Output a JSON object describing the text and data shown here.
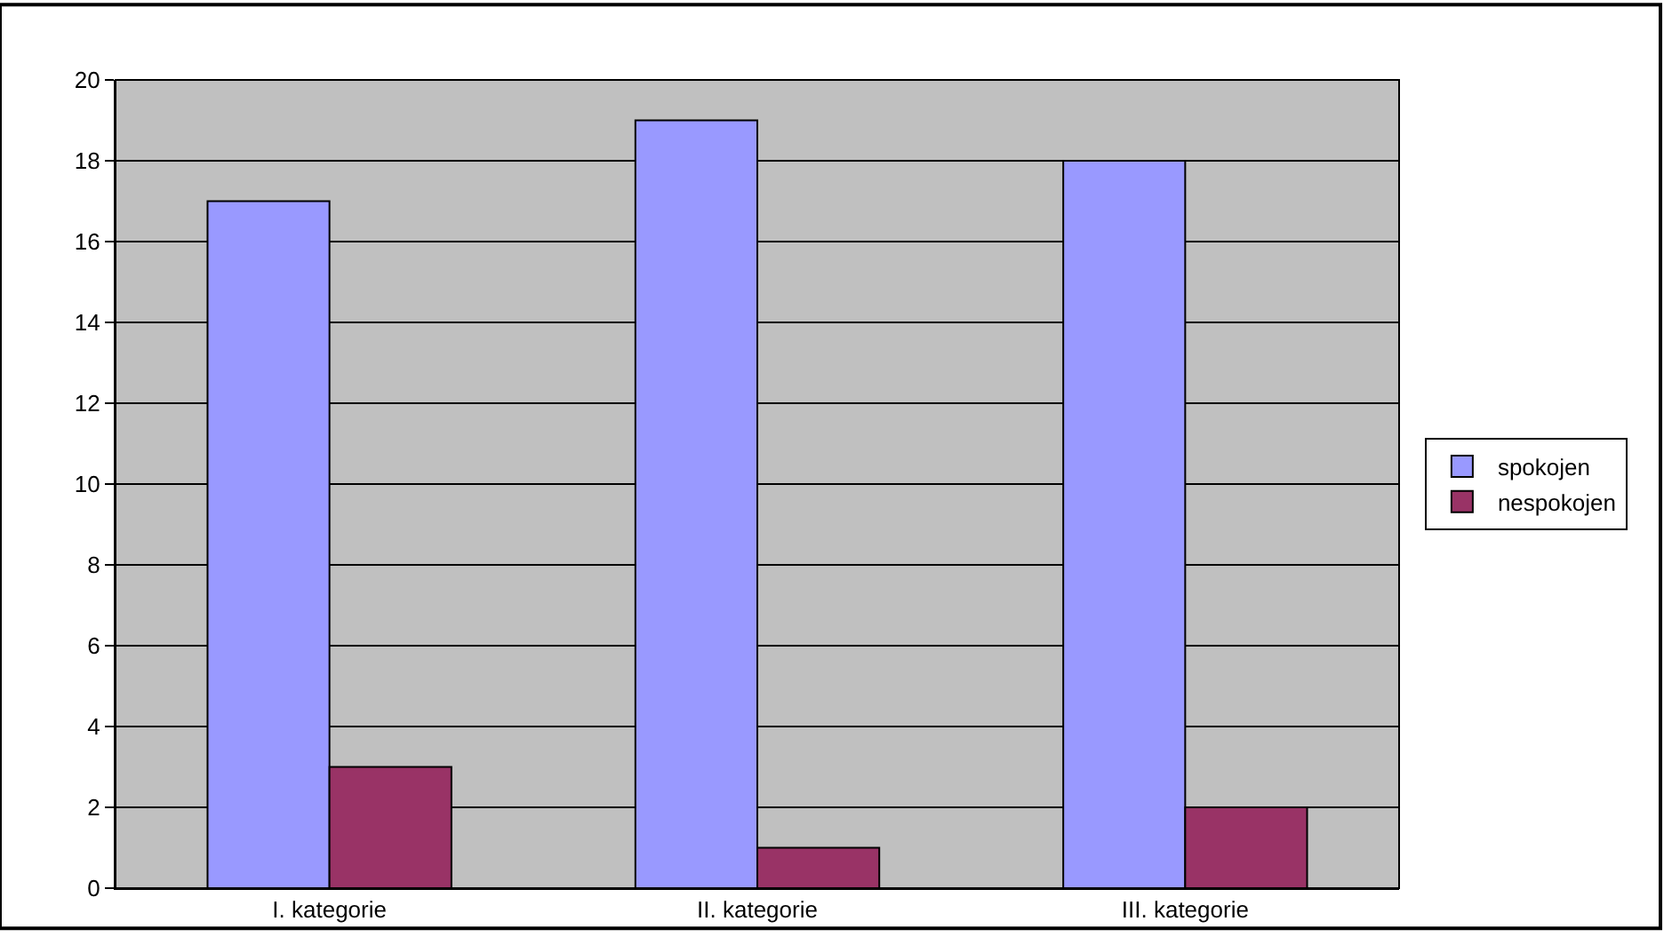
{
  "chart_data": {
    "type": "bar",
    "categories": [
      "I. kategorie",
      "II. kategorie",
      "III. kategorie"
    ],
    "series": [
      {
        "name": "spokojen",
        "color": "#9999ff",
        "values": [
          17,
          19,
          18
        ]
      },
      {
        "name": "nespokojen",
        "color": "#993366",
        "values": [
          3,
          1,
          2
        ]
      }
    ],
    "ylim": [
      0,
      20
    ],
    "yticks": [
      0,
      2,
      4,
      6,
      8,
      10,
      12,
      14,
      16,
      18,
      20
    ],
    "grid": "y",
    "legend": "right"
  }
}
